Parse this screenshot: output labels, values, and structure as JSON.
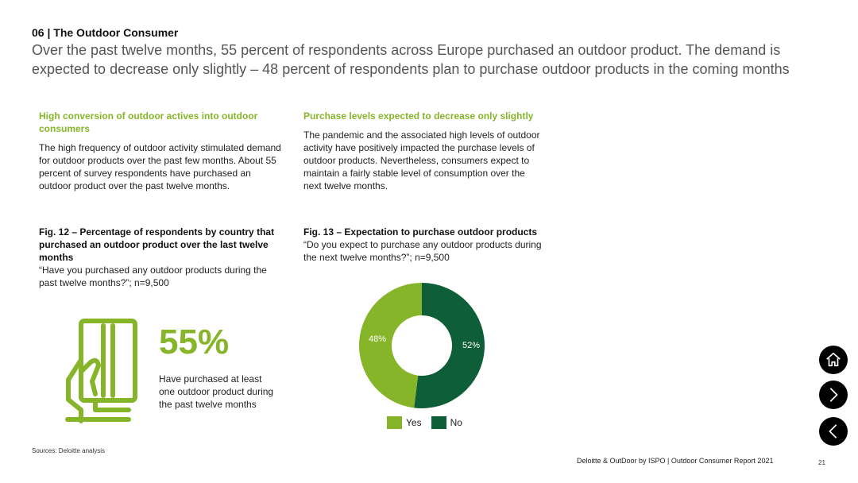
{
  "header": {
    "section_title": "06 | The Outdoor Consumer",
    "headline": "Over the past twelve months, 55 percent of respondents across Europe purchased an outdoor product. The demand is expected to decrease only slightly – 48 percent of respondents plan to purchase outdoor products in the coming months"
  },
  "left": {
    "sub_heading": "High conversion of outdoor actives into outdoor consumers",
    "body": "The high frequency of outdoor activity stimulated demand for outdoor products over the past few months. About 55 percent of survey respondents have purchased an outdoor product over the past twelve months.",
    "fig_title": "Fig. 12 – Percentage of respondents by country that purchased an outdoor product over the last twelve months",
    "fig_note": "“Have you purchased any outdoor products during the past twelve months?”; n=9,500",
    "stat_value": "55%",
    "stat_desc": "Have purchased at least one outdoor product during the past twelve months",
    "icon": "card-in-hand-icon"
  },
  "right": {
    "sub_heading": "Purchase levels expected to decrease only slightly",
    "body": "The pandemic and the associated high levels of outdoor activity have positively impacted the purchase levels of outdoor products. Nevertheless, consumers expect to maintain a fairly stable level of consumption over the next twelve months.",
    "fig_title": "Fig. 13 – Expectation to purchase outdoor products",
    "fig_note": "“Do you expect to purchase any outdoor products during the next twelve months?”; n=9,500"
  },
  "chart_data": {
    "type": "pie",
    "donut": true,
    "categories": [
      "Yes",
      "No"
    ],
    "values": [
      48,
      52
    ],
    "value_labels": [
      "48%",
      "52%"
    ],
    "colors": [
      "#86b52a",
      "#0e5e38"
    ],
    "legend": "bottom"
  },
  "footer": {
    "sources": "Sources: Deloitte analysis",
    "report": "Deloitte & OutDoor by ISPO | Outdoor Consumer Report 2021",
    "page": "21"
  },
  "nav": {
    "home_icon": "home-icon",
    "next_icon": "chevron-right-icon",
    "prev_icon": "chevron-left-icon"
  }
}
